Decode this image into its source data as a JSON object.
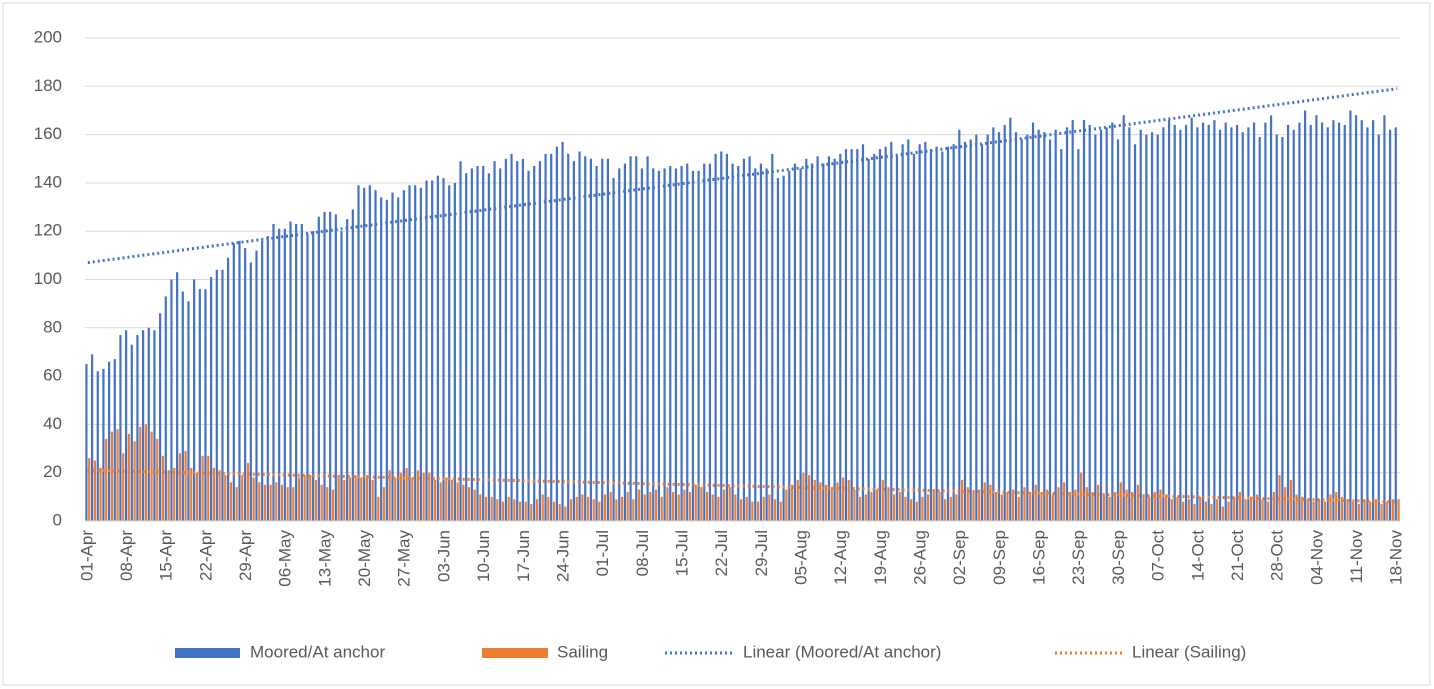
{
  "chart_data": {
    "type": "bar",
    "categories": [
      "01-Apr",
      null,
      null,
      null,
      null,
      null,
      null,
      "08-Apr",
      null,
      null,
      null,
      null,
      null,
      null,
      "15-Apr",
      null,
      null,
      null,
      null,
      null,
      null,
      "22-Apr",
      null,
      null,
      null,
      null,
      null,
      null,
      "29-Apr",
      null,
      null,
      null,
      null,
      null,
      null,
      "06-May",
      null,
      null,
      null,
      null,
      null,
      null,
      "13-May",
      null,
      null,
      null,
      null,
      null,
      null,
      "20-May",
      null,
      null,
      null,
      null,
      null,
      null,
      "27-May",
      null,
      null,
      null,
      null,
      null,
      null,
      "03-Jun",
      null,
      null,
      null,
      null,
      null,
      null,
      "10-Jun",
      null,
      null,
      null,
      null,
      null,
      null,
      "17-Jun",
      null,
      null,
      null,
      null,
      null,
      null,
      "24-Jun",
      null,
      null,
      null,
      null,
      null,
      null,
      "01-Jul",
      null,
      null,
      null,
      null,
      null,
      null,
      "08-Jul",
      null,
      null,
      null,
      null,
      null,
      null,
      "15-Jul",
      null,
      null,
      null,
      null,
      null,
      null,
      "22-Jul",
      null,
      null,
      null,
      null,
      null,
      null,
      "29-Jul",
      null,
      null,
      null,
      null,
      null,
      null,
      "05-Aug",
      null,
      null,
      null,
      null,
      null,
      null,
      "12-Aug",
      null,
      null,
      null,
      null,
      null,
      null,
      "19-Aug",
      null,
      null,
      null,
      null,
      null,
      null,
      "26-Aug",
      null,
      null,
      null,
      null,
      null,
      null,
      "02-Sep",
      null,
      null,
      null,
      null,
      null,
      null,
      "09-Sep",
      null,
      null,
      null,
      null,
      null,
      null,
      "16-Sep",
      null,
      null,
      null,
      null,
      null,
      null,
      "23-Sep",
      null,
      null,
      null,
      null,
      null,
      null,
      "30-Sep",
      null,
      null,
      null,
      null,
      null,
      null,
      "07-Oct",
      null,
      null,
      null,
      null,
      null,
      null,
      "14-Oct",
      null,
      null,
      null,
      null,
      null,
      null,
      "21-Oct",
      null,
      null,
      null,
      null,
      null,
      null,
      "28-Oct",
      null,
      null,
      null,
      null,
      null,
      null,
      "04-Nov",
      null,
      null,
      null,
      null,
      null,
      null,
      "11-Nov",
      null,
      null,
      null,
      null,
      null,
      null,
      "18-Nov"
    ],
    "series": [
      {
        "name": "Moored/At anchor",
        "color": "#4472c4",
        "values": [
          65,
          69,
          62,
          63,
          66,
          67,
          77,
          79,
          73,
          77,
          79,
          80,
          79,
          86,
          93,
          100,
          103,
          95,
          91,
          100,
          96,
          96,
          101,
          104,
          104,
          109,
          115,
          116,
          113,
          107,
          112,
          116,
          118,
          123,
          121,
          121,
          124,
          123,
          123,
          119,
          120,
          126,
          128,
          128,
          127,
          120,
          125,
          129,
          139,
          138,
          139,
          137,
          134,
          133,
          136,
          134,
          137,
          139,
          139,
          138,
          141,
          141,
          143,
          142,
          139,
          140,
          149,
          144,
          146,
          147,
          147,
          144,
          149,
          146,
          150,
          152,
          149,
          150,
          145,
          147,
          149,
          152,
          152,
          155,
          157,
          152,
          149,
          153,
          151,
          150,
          147,
          150,
          150,
          142,
          146,
          148,
          151,
          151,
          146,
          151,
          146,
          145,
          146,
          147,
          146,
          147,
          148,
          145,
          145,
          148,
          148,
          152,
          153,
          152,
          148,
          147,
          150,
          151,
          146,
          148,
          146,
          152,
          142,
          143,
          145,
          148,
          146,
          150,
          148,
          151,
          148,
          151,
          150,
          152,
          154,
          154,
          154,
          156,
          150,
          152,
          154,
          155,
          157,
          151,
          156,
          158,
          152,
          156,
          157,
          154,
          155,
          153,
          155,
          156,
          162,
          157,
          158,
          160,
          156,
          160,
          163,
          161,
          164,
          167,
          161,
          158,
          160,
          165,
          162,
          161,
          158,
          162,
          154,
          163,
          166,
          154,
          166,
          164,
          160,
          162,
          163,
          165,
          158,
          168,
          163,
          156,
          162,
          160,
          161,
          160,
          163,
          166,
          164,
          162,
          164,
          167,
          163,
          165,
          164,
          166,
          162,
          165,
          163,
          164,
          161,
          163,
          165,
          159,
          165,
          168,
          160,
          159,
          164,
          162,
          165,
          170,
          164,
          168,
          165,
          163,
          166,
          165,
          164,
          170,
          168,
          166,
          163,
          166,
          160,
          168,
          162,
          163
        ]
      },
      {
        "name": "Sailing",
        "color": "#ed7d31",
        "values": [
          26,
          25,
          22,
          34,
          37,
          38,
          28,
          36,
          33,
          39,
          40,
          37,
          34,
          27,
          21,
          22,
          28,
          29,
          22,
          20,
          27,
          27,
          22,
          21,
          19,
          16,
          14,
          19,
          24,
          18,
          16,
          15,
          15,
          16,
          15,
          14,
          14,
          18,
          19,
          19,
          17,
          15,
          14,
          13,
          19,
          17,
          18,
          19,
          18,
          19,
          17,
          10,
          14,
          21,
          18,
          20,
          22,
          18,
          21,
          20,
          20,
          17,
          16,
          18,
          17,
          16,
          15,
          14,
          13,
          11,
          10,
          10,
          9,
          8,
          10,
          9,
          8,
          8,
          7,
          9,
          11,
          10,
          8,
          7,
          6,
          9,
          10,
          11,
          10,
          9,
          8,
          11,
          12,
          9,
          10,
          12,
          9,
          13,
          11,
          12,
          13,
          10,
          14,
          12,
          11,
          13,
          12,
          15,
          14,
          12,
          11,
          10,
          13,
          14,
          11,
          9,
          10,
          8,
          8,
          10,
          11,
          9,
          8,
          13,
          15,
          17,
          20,
          19,
          17,
          16,
          15,
          14,
          16,
          18,
          17,
          13,
          10,
          11,
          12,
          13,
          17,
          14,
          11,
          12,
          10,
          9,
          8,
          10,
          11,
          13,
          12,
          9,
          10,
          11,
          17,
          14,
          12,
          13,
          16,
          15,
          12,
          11,
          12,
          13,
          10,
          14,
          12,
          15,
          12,
          13,
          11,
          14,
          16,
          12,
          13,
          20,
          14,
          12,
          15,
          11,
          10,
          12,
          16,
          13,
          12,
          15,
          11,
          10,
          12,
          13,
          11,
          9,
          10,
          8,
          9,
          7,
          10,
          8,
          7,
          9,
          6,
          8,
          10,
          12,
          9,
          10,
          11,
          9,
          8,
          12,
          19,
          14,
          17,
          11,
          10,
          9,
          8,
          9,
          8,
          11,
          12,
          10,
          9,
          8,
          7,
          9,
          8,
          9,
          7,
          8,
          9,
          9
        ]
      }
    ],
    "trendlines": [
      {
        "name": "Linear (Moored/At anchor)",
        "color": "#4472c4",
        "values": [
          107,
          179
        ]
      },
      {
        "name": "Linear (Sailing)",
        "color": "#ed7d31",
        "values": [
          21,
          8
        ]
      }
    ],
    "ylim": [
      0,
      200
    ],
    "yticks": [
      0,
      20,
      40,
      60,
      80,
      100,
      120,
      140,
      160,
      180,
      200
    ],
    "grid": true,
    "legend": "bottom"
  }
}
